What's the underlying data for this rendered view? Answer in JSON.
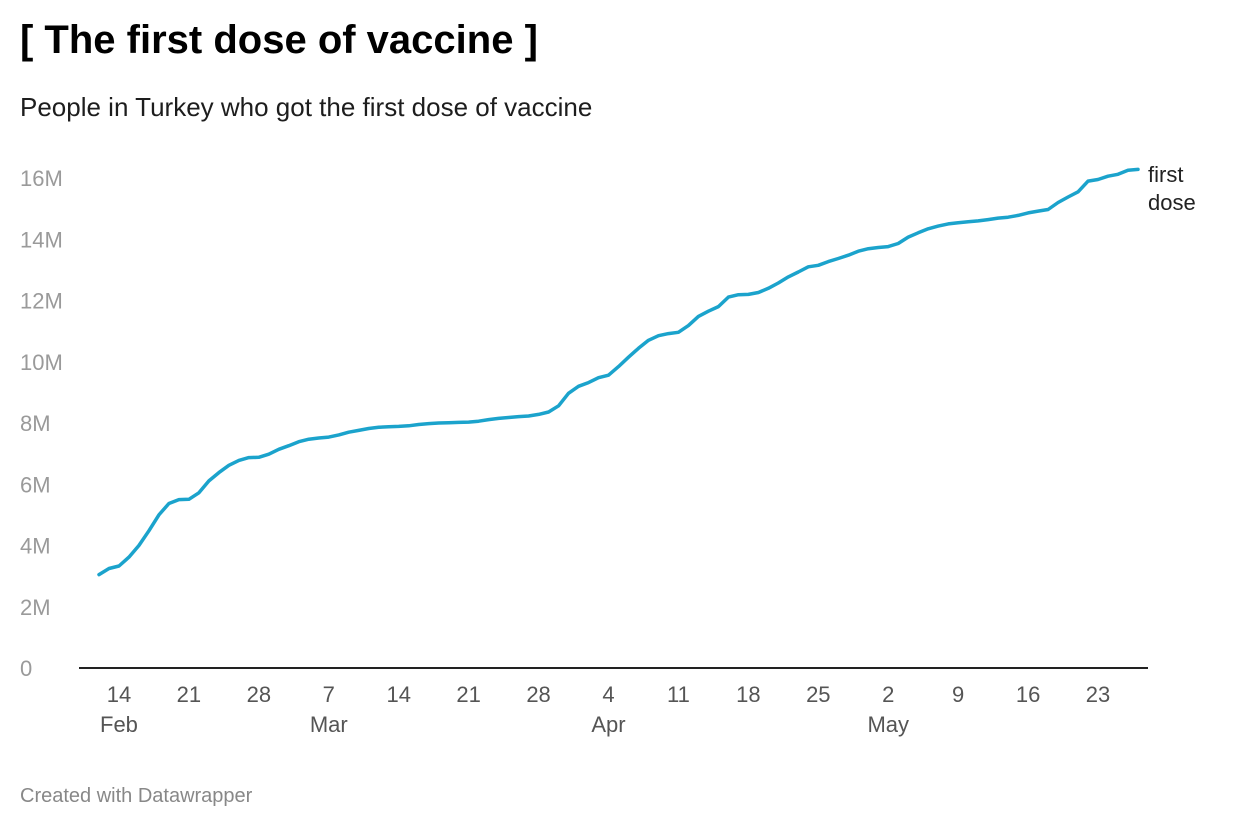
{
  "title": "[ The first dose of vaccine ]",
  "subtitle": "People in Turkey who got the first dose of vaccine",
  "footer": "Created with Datawrapper",
  "colors": {
    "line": "#1ba3cc",
    "axis": "#222222",
    "tick": "#9a9a9a"
  },
  "chart_data": {
    "type": "line",
    "title": "[ The first dose of vaccine ]",
    "subtitle": "People in Turkey who got the first dose of vaccine",
    "xlabel": "",
    "ylabel": "",
    "ylim": [
      0,
      16000000
    ],
    "xlim": [
      "2021-02-10",
      "2021-05-28"
    ],
    "grid": false,
    "yticks": [
      {
        "value": 0,
        "label": "0"
      },
      {
        "value": 2000000,
        "label": "2M"
      },
      {
        "value": 4000000,
        "label": "4M"
      },
      {
        "value": 6000000,
        "label": "6M"
      },
      {
        "value": 8000000,
        "label": "8M"
      },
      {
        "value": 10000000,
        "label": "10M"
      },
      {
        "value": 12000000,
        "label": "12M"
      },
      {
        "value": 14000000,
        "label": "14M"
      },
      {
        "value": 16000000,
        "label": "16M"
      }
    ],
    "xticks": [
      {
        "date": "2021-02-14",
        "label": "14",
        "month": "Feb"
      },
      {
        "date": "2021-02-21",
        "label": "21",
        "month": ""
      },
      {
        "date": "2021-02-28",
        "label": "28",
        "month": ""
      },
      {
        "date": "2021-03-07",
        "label": "7",
        "month": "Mar"
      },
      {
        "date": "2021-03-14",
        "label": "14",
        "month": ""
      },
      {
        "date": "2021-03-21",
        "label": "21",
        "month": ""
      },
      {
        "date": "2021-03-28",
        "label": "28",
        "month": ""
      },
      {
        "date": "2021-04-04",
        "label": "4",
        "month": "Apr"
      },
      {
        "date": "2021-04-11",
        "label": "11",
        "month": ""
      },
      {
        "date": "2021-04-18",
        "label": "18",
        "month": ""
      },
      {
        "date": "2021-04-25",
        "label": "25",
        "month": ""
      },
      {
        "date": "2021-05-02",
        "label": "2",
        "month": "May"
      },
      {
        "date": "2021-05-09",
        "label": "9",
        "month": ""
      },
      {
        "date": "2021-05-16",
        "label": "16",
        "month": ""
      },
      {
        "date": "2021-05-23",
        "label": "23",
        "month": ""
      }
    ],
    "series": [
      {
        "name": "first dose",
        "label_lines": [
          "first",
          "dose"
        ],
        "points": [
          [
            "2021-02-12",
            3050000
          ],
          [
            "2021-02-13",
            3250000
          ],
          [
            "2021-02-14",
            3330000
          ],
          [
            "2021-02-15",
            3620000
          ],
          [
            "2021-02-16",
            4000000
          ],
          [
            "2021-02-17",
            4480000
          ],
          [
            "2021-02-18",
            5000000
          ],
          [
            "2021-02-19",
            5370000
          ],
          [
            "2021-02-20",
            5500000
          ],
          [
            "2021-02-21",
            5510000
          ],
          [
            "2021-02-22",
            5720000
          ],
          [
            "2021-02-23",
            6110000
          ],
          [
            "2021-02-24",
            6380000
          ],
          [
            "2021-02-25",
            6620000
          ],
          [
            "2021-02-26",
            6780000
          ],
          [
            "2021-02-27",
            6870000
          ],
          [
            "2021-02-28",
            6880000
          ],
          [
            "2021-03-01",
            6980000
          ],
          [
            "2021-03-02",
            7140000
          ],
          [
            "2021-03-03",
            7260000
          ],
          [
            "2021-03-04",
            7390000
          ],
          [
            "2021-03-05",
            7470000
          ],
          [
            "2021-03-06",
            7510000
          ],
          [
            "2021-03-07",
            7540000
          ],
          [
            "2021-03-08",
            7610000
          ],
          [
            "2021-03-09",
            7700000
          ],
          [
            "2021-03-10",
            7760000
          ],
          [
            "2021-03-11",
            7820000
          ],
          [
            "2021-03-12",
            7860000
          ],
          [
            "2021-03-13",
            7880000
          ],
          [
            "2021-03-14",
            7890000
          ],
          [
            "2021-03-15",
            7910000
          ],
          [
            "2021-03-16",
            7950000
          ],
          [
            "2021-03-17",
            7980000
          ],
          [
            "2021-03-18",
            8000000
          ],
          [
            "2021-03-19",
            8010000
          ],
          [
            "2021-03-20",
            8020000
          ],
          [
            "2021-03-21",
            8030000
          ],
          [
            "2021-03-22",
            8060000
          ],
          [
            "2021-03-23",
            8110000
          ],
          [
            "2021-03-24",
            8150000
          ],
          [
            "2021-03-25",
            8180000
          ],
          [
            "2021-03-26",
            8210000
          ],
          [
            "2021-03-27",
            8230000
          ],
          [
            "2021-03-28",
            8280000
          ],
          [
            "2021-03-29",
            8360000
          ],
          [
            "2021-03-30",
            8560000
          ],
          [
            "2021-03-31",
            8970000
          ],
          [
            "2021-04-01",
            9200000
          ],
          [
            "2021-04-02",
            9320000
          ],
          [
            "2021-04-03",
            9480000
          ],
          [
            "2021-04-04",
            9560000
          ],
          [
            "2021-04-05",
            9840000
          ],
          [
            "2021-04-06",
            10150000
          ],
          [
            "2021-04-07",
            10440000
          ],
          [
            "2021-04-08",
            10700000
          ],
          [
            "2021-04-09",
            10850000
          ],
          [
            "2021-04-10",
            10920000
          ],
          [
            "2021-04-11",
            10960000
          ],
          [
            "2021-04-12",
            11180000
          ],
          [
            "2021-04-13",
            11480000
          ],
          [
            "2021-04-14",
            11650000
          ],
          [
            "2021-04-15",
            11800000
          ],
          [
            "2021-04-16",
            12110000
          ],
          [
            "2021-04-17",
            12190000
          ],
          [
            "2021-04-18",
            12200000
          ],
          [
            "2021-04-19",
            12260000
          ],
          [
            "2021-04-20",
            12400000
          ],
          [
            "2021-04-21",
            12570000
          ],
          [
            "2021-04-22",
            12770000
          ],
          [
            "2021-04-23",
            12930000
          ],
          [
            "2021-04-24",
            13100000
          ],
          [
            "2021-04-25",
            13150000
          ],
          [
            "2021-04-26",
            13270000
          ],
          [
            "2021-04-27",
            13370000
          ],
          [
            "2021-04-28",
            13480000
          ],
          [
            "2021-04-29",
            13610000
          ],
          [
            "2021-04-30",
            13690000
          ],
          [
            "2021-05-01",
            13730000
          ],
          [
            "2021-05-02",
            13760000
          ],
          [
            "2021-05-03",
            13860000
          ],
          [
            "2021-05-04",
            14070000
          ],
          [
            "2021-05-05",
            14210000
          ],
          [
            "2021-05-06",
            14340000
          ],
          [
            "2021-05-07",
            14430000
          ],
          [
            "2021-05-08",
            14500000
          ],
          [
            "2021-05-09",
            14540000
          ],
          [
            "2021-05-10",
            14570000
          ],
          [
            "2021-05-11",
            14600000
          ],
          [
            "2021-05-12",
            14640000
          ],
          [
            "2021-05-13",
            14690000
          ],
          [
            "2021-05-14",
            14720000
          ],
          [
            "2021-05-15",
            14780000
          ],
          [
            "2021-05-16",
            14860000
          ],
          [
            "2021-05-17",
            14920000
          ],
          [
            "2021-05-18",
            14970000
          ],
          [
            "2021-05-19",
            15200000
          ],
          [
            "2021-05-20",
            15380000
          ],
          [
            "2021-05-21",
            15550000
          ],
          [
            "2021-05-22",
            15900000
          ],
          [
            "2021-05-23",
            15950000
          ],
          [
            "2021-05-24",
            16060000
          ],
          [
            "2021-05-25",
            16120000
          ],
          [
            "2021-05-26",
            16250000
          ],
          [
            "2021-05-27",
            16280000
          ]
        ]
      }
    ]
  }
}
